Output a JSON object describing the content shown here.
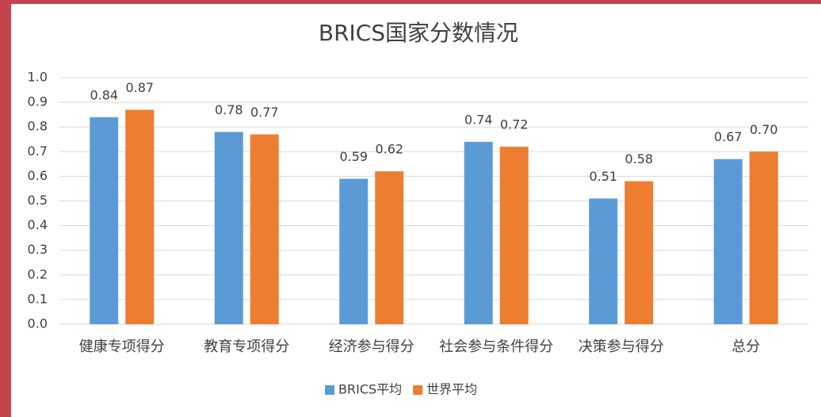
{
  "chart_data": {
    "type": "bar",
    "title": "BRICS国家分数情况",
    "categories": [
      "健康专项得分",
      "教育专项得分",
      "经济参与得分",
      "社会参与条件得分",
      "决策参与得分",
      "总分"
    ],
    "series": [
      {
        "name": "BRICS平均",
        "color": "#5b9bd5",
        "values": [
          0.84,
          0.78,
          0.59,
          0.74,
          0.51,
          0.67
        ],
        "value_labels": [
          "0.84",
          "0.78",
          "0.59",
          "0.74",
          "0.51",
          "0.67"
        ]
      },
      {
        "name": "世界平均",
        "color": "#ed7d31",
        "values": [
          0.87,
          0.77,
          0.62,
          0.72,
          0.58,
          0.7
        ],
        "value_labels": [
          "0.87",
          "0.77",
          "0.62",
          "0.72",
          "0.58",
          "0.70"
        ]
      }
    ],
    "ylim": [
      0,
      1
    ],
    "yticks": [
      {
        "value": 0,
        "label": "0.0"
      },
      0.1,
      0.2,
      0.3,
      0.4,
      0.5,
      0.6,
      0.7,
      0.8,
      0.9,
      {
        "value": 1,
        "label": "1.0"
      }
    ],
    "grid": true,
    "legend": "bottom"
  }
}
